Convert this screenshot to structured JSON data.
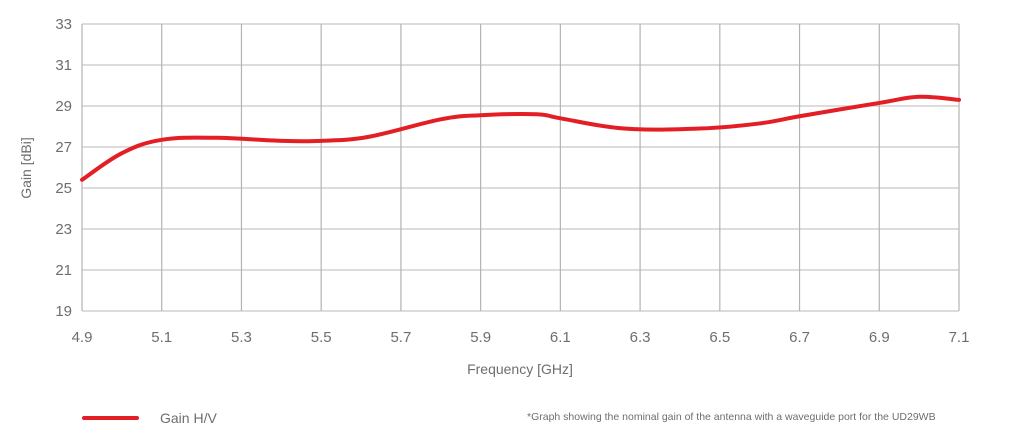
{
  "chart_data": {
    "type": "line",
    "title": "",
    "xlabel": "Frequency [GHz]",
    "ylabel": "Gain [dBi]",
    "xlim": [
      4.9,
      7.1
    ],
    "ylim": [
      19,
      33
    ],
    "x_ticks": [
      "4.9",
      "5.1",
      "5.3",
      "5.5",
      "5.7",
      "5.9",
      "6.1",
      "6.3",
      "6.5",
      "6.7",
      "6.9",
      "7.1"
    ],
    "y_ticks": [
      "19",
      "21",
      "23",
      "25",
      "27",
      "29",
      "31",
      "33"
    ],
    "grid": true,
    "legend_position": "bottom-left",
    "series": [
      {
        "name": "Gain H/V",
        "color": "#e31e24",
        "x": [
          4.9,
          5.0,
          5.1,
          5.235,
          5.4,
          5.5,
          5.62,
          5.8,
          5.9,
          6.04,
          6.1,
          6.26,
          6.45,
          6.6,
          6.7,
          6.9,
          7.0,
          7.1
        ],
        "values": [
          25.4,
          26.7,
          27.35,
          27.45,
          27.3,
          27.3,
          27.5,
          28.35,
          28.55,
          28.6,
          28.4,
          27.9,
          27.9,
          28.15,
          28.5,
          29.15,
          29.45,
          29.3
        ]
      }
    ],
    "annotations": [
      "*Graph showing the nominal gain of the antenna with a waveguide port for the UD29WB"
    ]
  },
  "legend": {
    "label": "Gain H/V",
    "color": "#e31e24"
  },
  "footnote": "*Graph showing the nominal gain of the antenna with a waveguide port for the UD29WB",
  "colors": {
    "line": "#e31e24",
    "grid": "#c8c8c8",
    "text": "#6d6e71"
  }
}
